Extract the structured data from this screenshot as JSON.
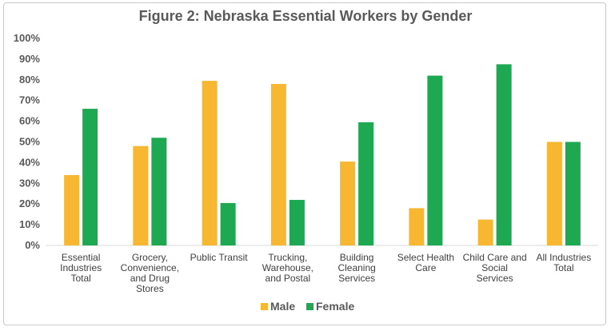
{
  "chart_data": {
    "type": "bar",
    "title": "Figure 2: Nebraska Essential Workers by Gender",
    "categories": [
      [
        "Essential",
        "Industries",
        "Total"
      ],
      [
        "Grocery,",
        "Convenience,",
        "and Drug",
        "Stores"
      ],
      [
        "Public Transit"
      ],
      [
        "Trucking,",
        "Warehouse,",
        "and Postal"
      ],
      [
        "Building",
        "Cleaning",
        "Services"
      ],
      [
        "Select Health",
        "Care"
      ],
      [
        "Child Care and",
        "Social",
        "Services"
      ],
      [
        "All Industries",
        "Total"
      ]
    ],
    "series": [
      {
        "name": "Male",
        "color": "#F7B731",
        "values": [
          34,
          48,
          79.5,
          78,
          40.5,
          18,
          12.5,
          50
        ]
      },
      {
        "name": "Female",
        "color": "#1DA851",
        "values": [
          66,
          52,
          20.5,
          22,
          59.5,
          82,
          87.5,
          50
        ]
      }
    ],
    "ylim": [
      0,
      100
    ],
    "yticks": [
      "0%",
      "10%",
      "20%",
      "30%",
      "40%",
      "50%",
      "60%",
      "70%",
      "80%",
      "90%",
      "100%"
    ],
    "legend": "bottom",
    "grid": false
  }
}
